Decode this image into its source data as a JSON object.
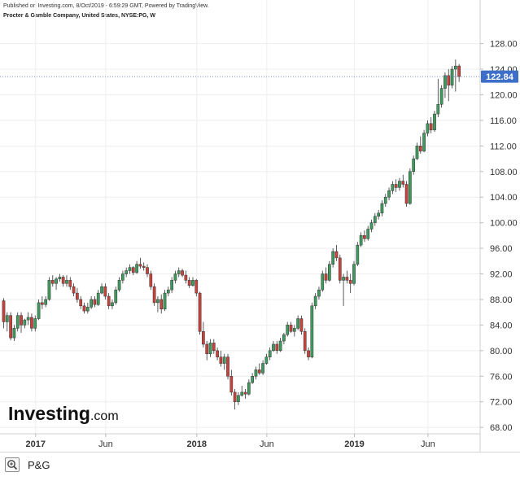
{
  "header": {
    "published": "Published on Investing.com, 8/Oct/2019 - 6:59:29 GMT, Powered by TradingView.",
    "symbol": "Procter & Gamble Company, United States, NYSE:PG, W"
  },
  "brand": {
    "name": "Investing",
    "suffix": ".com",
    "color": "#111111",
    "dot_color": "#f5a300"
  },
  "footer": {
    "ticker": "P&G",
    "zoom_icon": "zoom-in-icon"
  },
  "colors": {
    "up": "#3f9a5d",
    "down": "#c8423b",
    "price_tag": "#3d6fc9",
    "grid": "#eeeeee"
  },
  "chart_data": {
    "type": "candlestick",
    "interval": "W",
    "last_price": 122.84,
    "last_price_label": "122.84",
    "ylim": [
      67,
      131
    ],
    "y_ticks": [
      "128.00",
      "124.00",
      "120.00",
      "116.00",
      "112.00",
      "108.00",
      "104.00",
      "100.00",
      "96.00",
      "92.00",
      "88.00",
      "84.00",
      "80.00",
      "76.00",
      "72.00",
      "68.00"
    ],
    "x_labels": [
      "2017",
      "Jun",
      "2018",
      "Jun",
      "2019",
      "Jun"
    ],
    "grid": true,
    "series": [
      {
        "candles": [
          [
            87.8,
            88.2,
            83.5,
            84.5
          ],
          [
            84.5,
            86.0,
            83.0,
            85.5
          ],
          [
            85.5,
            86.0,
            81.6,
            82.0
          ],
          [
            82.0,
            84.0,
            81.5,
            83.5
          ],
          [
            83.5,
            86.0,
            83.0,
            85.5
          ],
          [
            85.5,
            86.0,
            82.8,
            84.0
          ],
          [
            84.0,
            85.0,
            83.5,
            84.8
          ],
          [
            84.8,
            86.0,
            84.0,
            85.2
          ],
          [
            85.2,
            85.8,
            83.0,
            83.5
          ],
          [
            83.5,
            85.5,
            83.0,
            85.0
          ],
          [
            85.0,
            88.0,
            84.8,
            87.5
          ],
          [
            87.5,
            88.5,
            86.5,
            87.2
          ],
          [
            87.2,
            88.5,
            86.8,
            88.0
          ],
          [
            88.0,
            91.5,
            87.8,
            91.0
          ],
          [
            91.0,
            91.8,
            90.0,
            90.5
          ],
          [
            90.5,
            91.5,
            89.5,
            91.2
          ],
          [
            91.2,
            92.0,
            90.8,
            91.5
          ],
          [
            91.5,
            91.8,
            90.0,
            90.5
          ],
          [
            90.5,
            91.8,
            90.0,
            91.0
          ],
          [
            91.0,
            91.5,
            89.5,
            90.0
          ],
          [
            90.0,
            90.5,
            88.5,
            89.0
          ],
          [
            89.0,
            89.8,
            87.5,
            88.0
          ],
          [
            88.0,
            88.5,
            86.5,
            87.0
          ],
          [
            87.0,
            87.5,
            85.8,
            86.2
          ],
          [
            86.2,
            87.5,
            85.8,
            86.8
          ],
          [
            86.8,
            88.5,
            86.5,
            88.0
          ],
          [
            88.0,
            88.5,
            86.8,
            87.2
          ],
          [
            87.2,
            89.5,
            87.0,
            89.0
          ],
          [
            89.0,
            90.5,
            88.8,
            90.0
          ],
          [
            90.0,
            90.5,
            88.0,
            88.5
          ],
          [
            88.5,
            89.0,
            86.5,
            87.0
          ],
          [
            87.0,
            88.0,
            86.5,
            87.5
          ],
          [
            87.5,
            90.0,
            87.2,
            89.5
          ],
          [
            89.5,
            91.5,
            89.2,
            91.0
          ],
          [
            91.0,
            92.5,
            90.5,
            92.0
          ],
          [
            92.0,
            93.0,
            91.5,
            92.5
          ],
          [
            92.5,
            93.5,
            92.0,
            93.0
          ],
          [
            93.0,
            93.2,
            91.8,
            92.2
          ],
          [
            92.2,
            94.0,
            92.0,
            93.5
          ],
          [
            93.5,
            94.5,
            92.8,
            93.2
          ],
          [
            93.2,
            93.8,
            92.5,
            93.0
          ],
          [
            93.0,
            93.5,
            91.5,
            92.0
          ],
          [
            92.0,
            92.5,
            89.5,
            90.0
          ],
          [
            90.0,
            90.5,
            87.0,
            87.5
          ],
          [
            87.5,
            88.5,
            86.0,
            88.0
          ],
          [
            88.0,
            88.8,
            85.8,
            86.5
          ],
          [
            86.5,
            89.5,
            86.2,
            89.0
          ],
          [
            89.0,
            90.0,
            88.5,
            89.5
          ],
          [
            89.5,
            91.5,
            89.0,
            91.0
          ],
          [
            91.0,
            92.5,
            90.5,
            92.0
          ],
          [
            92.0,
            93.0,
            91.5,
            92.5
          ],
          [
            92.5,
            92.8,
            91.5,
            91.8
          ],
          [
            91.8,
            92.5,
            90.5,
            91.0
          ],
          [
            91.0,
            91.5,
            89.8,
            90.2
          ],
          [
            90.2,
            91.5,
            90.0,
            91.0
          ],
          [
            91.0,
            91.2,
            88.5,
            89.0
          ],
          [
            89.0,
            89.2,
            82.5,
            83.0
          ],
          [
            83.0,
            84.5,
            80.5,
            81.0
          ],
          [
            81.0,
            81.5,
            78.5,
            79.5
          ],
          [
            79.5,
            81.8,
            79.0,
            81.2
          ],
          [
            81.2,
            81.8,
            79.5,
            80.0
          ],
          [
            80.0,
            80.5,
            78.5,
            79.0
          ],
          [
            79.0,
            80.0,
            77.5,
            78.0
          ],
          [
            78.0,
            79.5,
            77.0,
            79.0
          ],
          [
            79.0,
            79.5,
            75.5,
            76.0
          ],
          [
            76.0,
            77.0,
            73.0,
            73.5
          ],
          [
            73.5,
            74.0,
            70.8,
            72.0
          ],
          [
            72.0,
            73.5,
            71.5,
            73.0
          ],
          [
            73.0,
            74.5,
            72.8,
            73.5
          ],
          [
            73.5,
            74.0,
            72.5,
            73.2
          ],
          [
            73.2,
            75.5,
            73.0,
            75.0
          ],
          [
            75.0,
            76.5,
            74.8,
            76.0
          ],
          [
            76.0,
            77.5,
            75.5,
            77.0
          ],
          [
            77.0,
            78.0,
            76.2,
            76.5
          ],
          [
            76.5,
            78.5,
            76.2,
            78.0
          ],
          [
            78.0,
            79.5,
            77.8,
            79.0
          ],
          [
            79.0,
            80.5,
            78.5,
            80.0
          ],
          [
            80.0,
            81.5,
            79.8,
            81.0
          ],
          [
            81.0,
            81.5,
            79.5,
            80.0
          ],
          [
            80.0,
            82.0,
            79.8,
            81.5
          ],
          [
            81.5,
            82.8,
            81.0,
            82.5
          ],
          [
            82.5,
            84.5,
            82.2,
            84.0
          ],
          [
            84.0,
            84.5,
            82.8,
            83.0
          ],
          [
            83.0,
            84.0,
            82.2,
            83.5
          ],
          [
            83.5,
            85.5,
            83.2,
            85.0
          ],
          [
            85.0,
            85.5,
            82.5,
            83.0
          ],
          [
            83.0,
            83.5,
            79.5,
            80.0
          ],
          [
            80.0,
            80.5,
            78.5,
            79.0
          ],
          [
            79.0,
            87.5,
            78.8,
            87.0
          ],
          [
            87.0,
            89.0,
            86.5,
            88.5
          ],
          [
            88.5,
            90.0,
            88.0,
            89.5
          ],
          [
            89.5,
            92.5,
            89.2,
            92.0
          ],
          [
            92.0,
            93.0,
            90.5,
            91.0
          ],
          [
            91.0,
            94.0,
            90.8,
            93.5
          ],
          [
            93.5,
            96.0,
            93.0,
            95.5
          ],
          [
            95.5,
            96.5,
            94.0,
            94.5
          ],
          [
            94.5,
            95.0,
            90.5,
            91.0
          ],
          [
            91.0,
            92.0,
            87.0,
            91.5
          ],
          [
            91.5,
            92.5,
            90.5,
            91.0
          ],
          [
            91.0,
            92.0,
            89.0,
            90.5
          ],
          [
            90.5,
            94.0,
            90.2,
            93.5
          ],
          [
            93.5,
            97.0,
            93.2,
            96.5
          ],
          [
            96.5,
            98.5,
            96.2,
            98.0
          ],
          [
            98.0,
            98.8,
            97.0,
            97.5
          ],
          [
            97.5,
            99.5,
            97.2,
            99.0
          ],
          [
            99.0,
            100.5,
            98.5,
            100.0
          ],
          [
            100.0,
            101.5,
            99.5,
            101.0
          ],
          [
            101.0,
            102.0,
            100.5,
            101.5
          ],
          [
            101.5,
            103.5,
            101.0,
            103.0
          ],
          [
            103.0,
            104.5,
            102.5,
            104.0
          ],
          [
            104.0,
            105.5,
            103.5,
            105.0
          ],
          [
            105.0,
            106.5,
            104.5,
            106.0
          ],
          [
            106.0,
            106.8,
            104.8,
            105.5
          ],
          [
            105.5,
            107.0,
            105.0,
            106.5
          ],
          [
            106.5,
            107.5,
            105.5,
            106.0
          ],
          [
            106.0,
            106.5,
            102.5,
            103.0
          ],
          [
            103.0,
            108.5,
            102.8,
            108.0
          ],
          [
            108.0,
            110.5,
            107.5,
            110.0
          ],
          [
            110.0,
            112.5,
            109.8,
            112.0
          ],
          [
            112.0,
            113.5,
            110.8,
            111.2
          ],
          [
            111.2,
            114.5,
            111.0,
            114.0
          ],
          [
            114.0,
            116.0,
            113.5,
            115.5
          ],
          [
            115.5,
            116.5,
            114.0,
            114.5
          ],
          [
            114.5,
            117.5,
            114.2,
            117.0
          ],
          [
            117.0,
            122.5,
            116.5,
            118.5
          ],
          [
            118.5,
            121.5,
            118.0,
            121.0
          ],
          [
            121.0,
            123.5,
            119.5,
            123.0
          ],
          [
            123.0,
            124.0,
            119.0,
            121.5
          ],
          [
            121.5,
            124.5,
            121.0,
            124.0
          ],
          [
            124.0,
            125.5,
            120.5,
            124.5
          ],
          [
            124.5,
            124.8,
            122.0,
            122.84
          ]
        ]
      }
    ]
  }
}
